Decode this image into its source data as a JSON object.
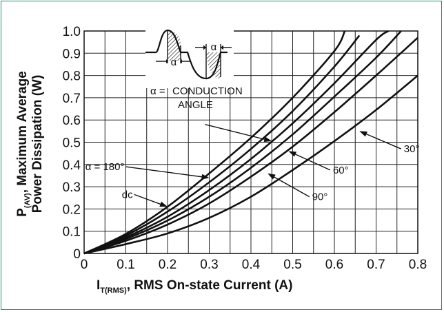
{
  "chart_data": {
    "type": "line",
    "xlabel": {
      "main": "I",
      "sub": "T(RMS)",
      "rest": ", RMS On-state Current (A)"
    },
    "ylabel": {
      "line1_main": "P",
      "line1_sub": "(AV)",
      "line1_rest": ", Maximum Average",
      "line2": "Power Dissipation (W)"
    },
    "xlim": [
      0,
      0.8
    ],
    "ylim": [
      0,
      1.0
    ],
    "x_ticks": [
      "0",
      "0.1",
      "0.2",
      "0.3",
      "0.4",
      "0.5",
      "0.6",
      "0.7",
      "0.8"
    ],
    "y_ticks": [
      "0",
      "0.1",
      "0.2",
      "0.3",
      "0.4",
      "0.5",
      "0.6",
      "0.7",
      "0.8",
      "0.9",
      "1.0"
    ],
    "x_grid": [
      0,
      0.05,
      0.1,
      0.15,
      0.2,
      0.25,
      0.3,
      0.35,
      0.4,
      0.45,
      0.5,
      0.55,
      0.6,
      0.65,
      0.7,
      0.75,
      0.8
    ],
    "y_grid": [
      0,
      0.1,
      0.2,
      0.3,
      0.4,
      0.5,
      0.6,
      0.7,
      0.8,
      0.9,
      1.0
    ],
    "grid": true,
    "series": [
      {
        "name": "dc",
        "x": [
          0,
          0.1,
          0.2,
          0.3,
          0.4,
          0.5,
          0.6,
          0.625
        ],
        "y": [
          0,
          0.088,
          0.21,
          0.36,
          0.52,
          0.7,
          0.91,
          1.0
        ]
      },
      {
        "name": "180°",
        "x": [
          0,
          0.1,
          0.2,
          0.3,
          0.4,
          0.5,
          0.6,
          0.66
        ],
        "y": [
          0,
          0.08,
          0.188,
          0.32,
          0.47,
          0.64,
          0.84,
          0.98
        ]
      },
      {
        "name": "",
        "x": [
          0,
          0.1,
          0.2,
          0.3,
          0.4,
          0.5,
          0.6,
          0.7,
          0.73
        ],
        "y": [
          0,
          0.072,
          0.165,
          0.285,
          0.425,
          0.585,
          0.765,
          0.96,
          1.0
        ]
      },
      {
        "name": "60°",
        "x": [
          0,
          0.1,
          0.2,
          0.3,
          0.4,
          0.5,
          0.6,
          0.7,
          0.76
        ],
        "y": [
          0,
          0.065,
          0.148,
          0.255,
          0.385,
          0.535,
          0.705,
          0.88,
          1.0
        ]
      },
      {
        "name": "90°",
        "x": [
          0,
          0.1,
          0.2,
          0.3,
          0.4,
          0.5,
          0.6,
          0.7,
          0.8
        ],
        "y": [
          0,
          0.057,
          0.13,
          0.225,
          0.345,
          0.48,
          0.635,
          0.8,
          0.97
        ]
      },
      {
        "name": "30°",
        "x": [
          0,
          0.1,
          0.2,
          0.3,
          0.4,
          0.5,
          0.6,
          0.7,
          0.8
        ],
        "y": [
          0,
          0.042,
          0.09,
          0.16,
          0.255,
          0.375,
          0.505,
          0.645,
          0.8
        ]
      }
    ],
    "annotations": [
      {
        "id": "dc",
        "text": "dc",
        "target_x": 0.2,
        "target_y": 0.21,
        "text_x": 0.12,
        "text_y": 0.265
      },
      {
        "id": "a180",
        "text": "α = 180°",
        "target_x": 0.3,
        "target_y": 0.34,
        "text_x": 0.1,
        "text_y": 0.39
      },
      {
        "id": "a120",
        "text": "",
        "target_x": 0.45,
        "target_y": 0.505,
        "text_x": 0.29,
        "text_y": 0.58
      },
      {
        "id": "a60",
        "text": "60°",
        "target_x": 0.49,
        "target_y": 0.46,
        "text_x": 0.59,
        "text_y": 0.375
      },
      {
        "id": "a90",
        "text": "90°",
        "target_x": 0.44,
        "target_y": 0.36,
        "text_x": 0.54,
        "text_y": 0.255
      },
      {
        "id": "a30",
        "text": "30°",
        "target_x": 0.66,
        "target_y": 0.55,
        "text_x": 0.76,
        "text_y": 0.47
      }
    ],
    "inset": {
      "alpha_symbol": "α",
      "definition_label": "α =",
      "definition_line1": "CONDUCTION",
      "definition_line2": "ANGLE"
    }
  }
}
